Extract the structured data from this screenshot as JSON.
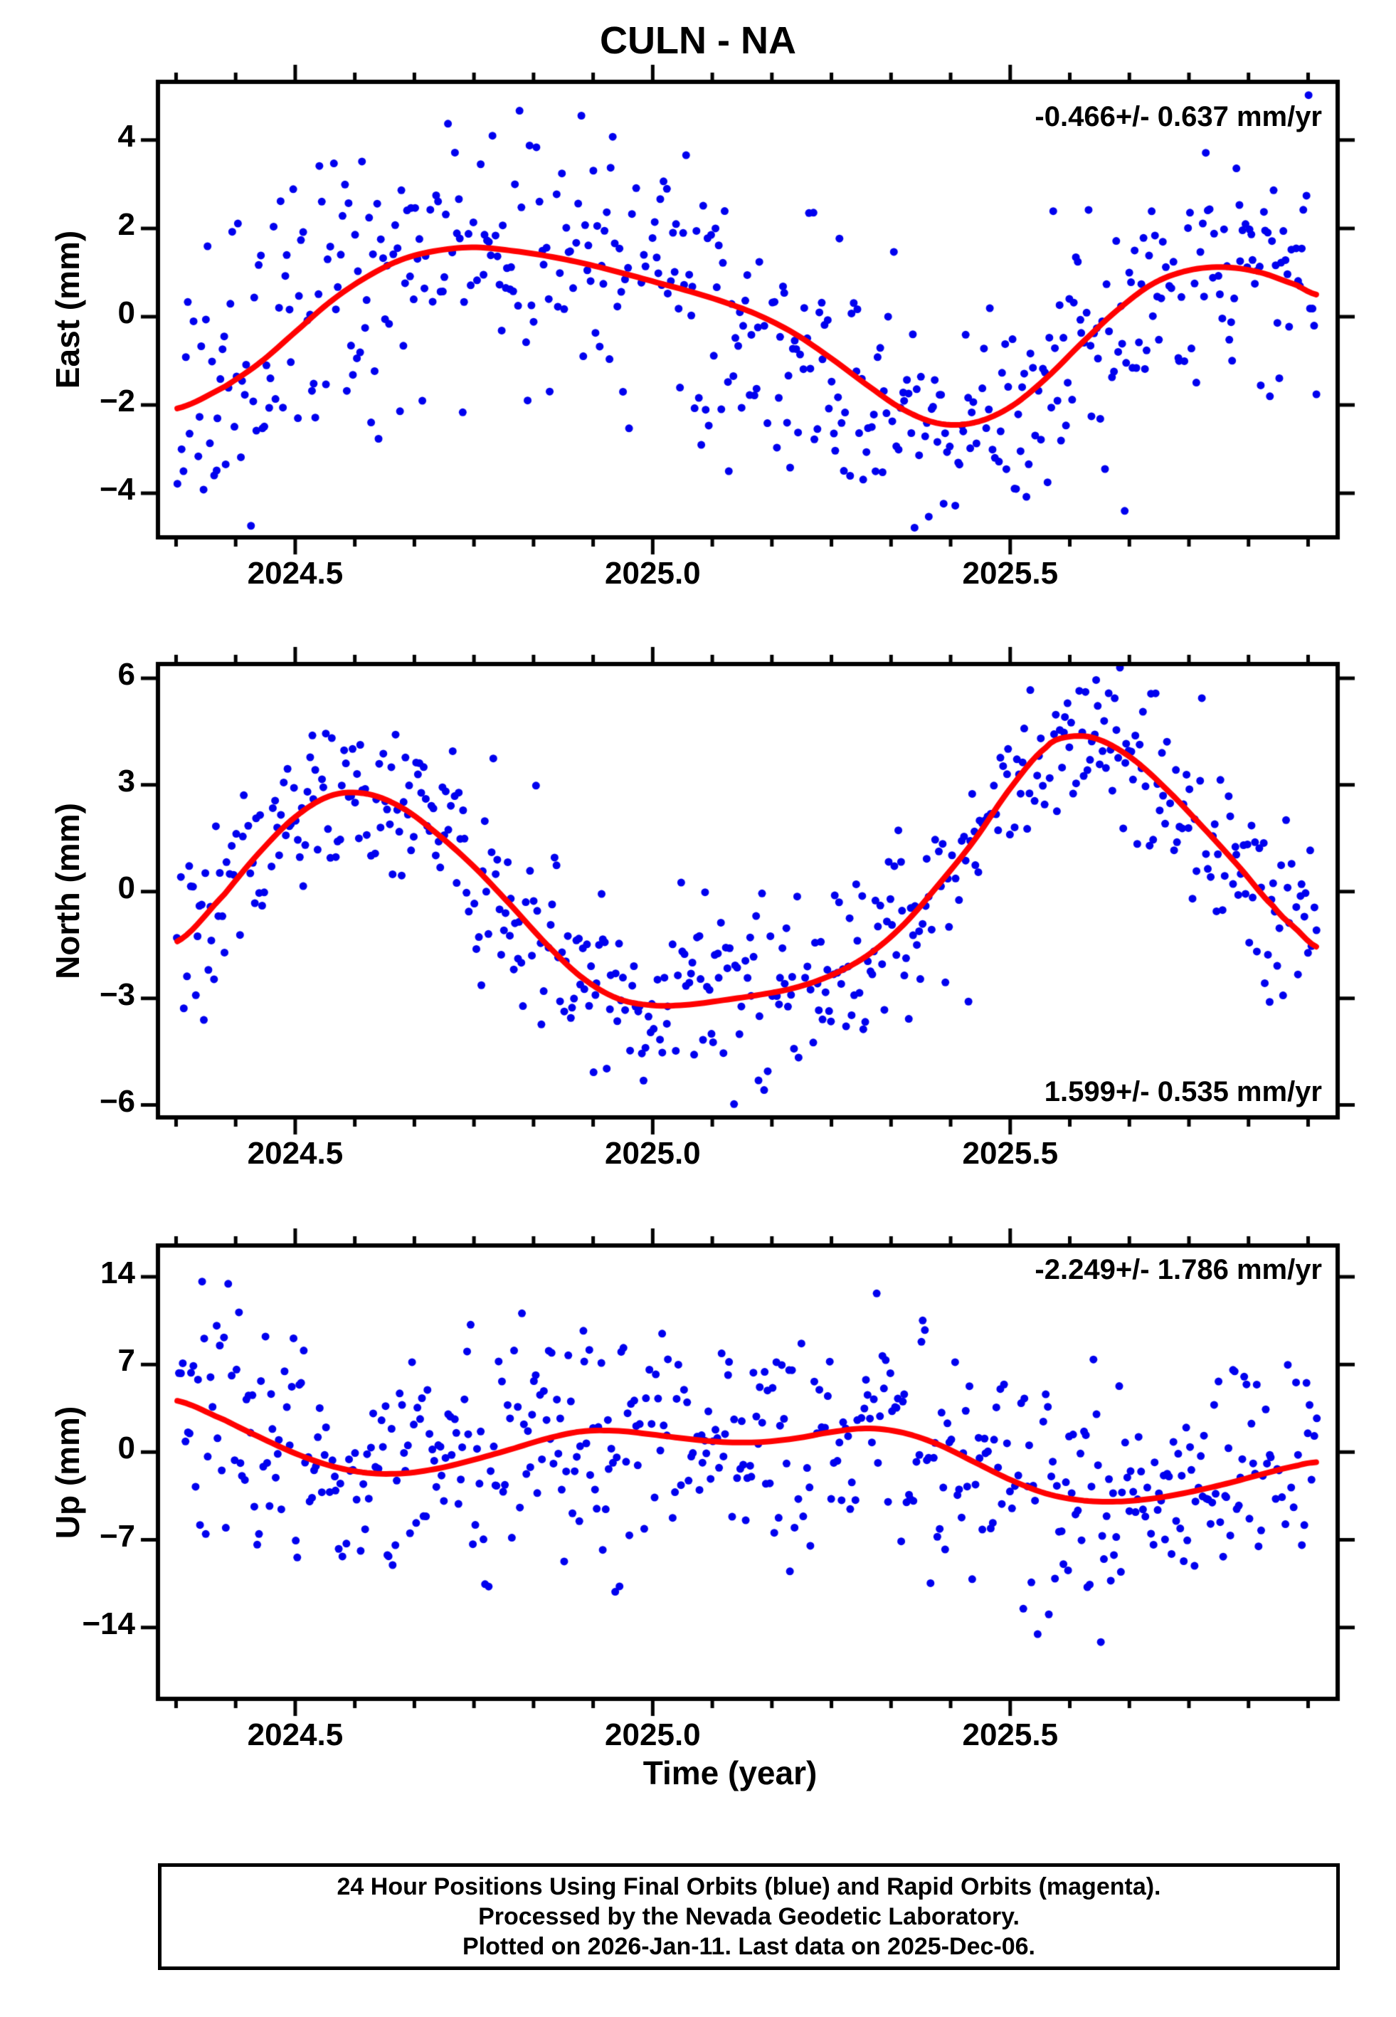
{
  "title": "CULN - NA",
  "xlabel": "Time (year)",
  "footer": {
    "line1": "24 Hour Positions Using Final Orbits (blue) and Rapid Orbits (magenta).",
    "line2": "Processed by the Nevada Geodetic Laboratory.",
    "line3": "Plotted on 2026-Jan-11. Last data on 2025-Dec-06."
  },
  "colors": {
    "scatter_blue": "#0000ee",
    "trend_red": "#ff0000",
    "frame_black": "#000000",
    "background": "#ffffff"
  },
  "chart_data": {
    "type": "scatter",
    "x_axis": {
      "label": "Time (year)",
      "lim": [
        2024.308,
        2025.958
      ],
      "major_ticks": [
        2024.5,
        2025.0,
        2025.5
      ],
      "major_tick_labels": [
        "2024.5",
        "2025.0",
        "2025.5"
      ],
      "minor_tick_interval_years": 0.08333
    },
    "panels": [
      {
        "id": "east",
        "ylabel": "East (mm)",
        "ylim": [
          -5.0,
          5.32
        ],
        "yticks": [
          -4,
          -2,
          0,
          2,
          4
        ],
        "rate_mm_per_yr": -0.466,
        "rate_sigma": 0.637,
        "annotation": "-0.466+/- 0.637 mm/yr",
        "annotation_pos": "top-right",
        "trend": [
          [
            2024.335,
            -2.08
          ],
          [
            2024.4,
            -1.6
          ],
          [
            2024.45,
            -1.05
          ],
          [
            2024.5,
            -0.35
          ],
          [
            2024.55,
            0.35
          ],
          [
            2024.6,
            0.9
          ],
          [
            2024.65,
            1.3
          ],
          [
            2024.7,
            1.5
          ],
          [
            2024.75,
            1.57
          ],
          [
            2024.8,
            1.5
          ],
          [
            2024.85,
            1.38
          ],
          [
            2024.9,
            1.22
          ],
          [
            2024.95,
            1.02
          ],
          [
            2025.0,
            0.8
          ],
          [
            2025.05,
            0.58
          ],
          [
            2025.1,
            0.33
          ],
          [
            2025.15,
            0.02
          ],
          [
            2025.2,
            -0.4
          ],
          [
            2025.25,
            -0.95
          ],
          [
            2025.3,
            -1.55
          ],
          [
            2025.35,
            -2.1
          ],
          [
            2025.4,
            -2.42
          ],
          [
            2025.45,
            -2.4
          ],
          [
            2025.5,
            -2.05
          ],
          [
            2025.55,
            -1.4
          ],
          [
            2025.6,
            -0.6
          ],
          [
            2025.65,
            0.15
          ],
          [
            2025.7,
            0.75
          ],
          [
            2025.75,
            1.05
          ],
          [
            2025.8,
            1.12
          ],
          [
            2025.85,
            1.0
          ],
          [
            2025.9,
            0.72
          ],
          [
            2025.928,
            0.5
          ]
        ],
        "scatter": {
          "n": 560,
          "sigma": 1.5,
          "seed": 11,
          "t_start": 2024.335,
          "t_end": 2025.928,
          "p_drop": 0.07,
          "p_neg": 0.015,
          "neg": [
            1.2,
            2.5
          ],
          "p_pos": 0.015,
          "pos": [
            1.2,
            2.5
          ]
        }
      },
      {
        "id": "north",
        "ylabel": "North (mm)",
        "ylim": [
          -6.35,
          6.4
        ],
        "yticks": [
          -6,
          -3,
          0,
          3,
          6
        ],
        "rate_mm_per_yr": 1.599,
        "rate_sigma": 0.535,
        "annotation": "1.599+/- 0.535 mm/yr",
        "annotation_pos": "bottom-right",
        "trend": [
          [
            2024.335,
            -1.4
          ],
          [
            2024.4,
            -0.1
          ],
          [
            2024.45,
            1.1
          ],
          [
            2024.5,
            2.1
          ],
          [
            2024.55,
            2.7
          ],
          [
            2024.6,
            2.75
          ],
          [
            2024.65,
            2.35
          ],
          [
            2024.7,
            1.6
          ],
          [
            2024.75,
            0.7
          ],
          [
            2024.8,
            -0.35
          ],
          [
            2024.85,
            -1.45
          ],
          [
            2024.9,
            -2.4
          ],
          [
            2024.95,
            -3.0
          ],
          [
            2025.0,
            -3.2
          ],
          [
            2025.05,
            -3.18
          ],
          [
            2025.1,
            -3.05
          ],
          [
            2025.15,
            -2.9
          ],
          [
            2025.2,
            -2.7
          ],
          [
            2025.25,
            -2.35
          ],
          [
            2025.3,
            -1.8
          ],
          [
            2025.35,
            -0.95
          ],
          [
            2025.4,
            0.2
          ],
          [
            2025.45,
            1.45
          ],
          [
            2025.5,
            2.9
          ],
          [
            2025.55,
            4.05
          ],
          [
            2025.58,
            4.35
          ],
          [
            2025.62,
            4.3
          ],
          [
            2025.67,
            3.75
          ],
          [
            2025.72,
            2.85
          ],
          [
            2025.77,
            1.8
          ],
          [
            2025.82,
            0.7
          ],
          [
            2025.87,
            -0.45
          ],
          [
            2025.9,
            -1.05
          ],
          [
            2025.928,
            -1.55
          ]
        ],
        "scatter": {
          "n": 560,
          "sigma": 1.25,
          "seed": 22,
          "t_start": 2024.335,
          "t_end": 2025.928,
          "p_drop": 0.07,
          "p_neg": 0.012,
          "neg": [
            1.0,
            1.8
          ],
          "p_pos": 0.012,
          "pos": [
            1.0,
            1.8
          ]
        }
      },
      {
        "id": "up",
        "ylabel": "Up (mm)",
        "ylim": [
          -19.7,
          16.5
        ],
        "yticks": [
          -14,
          -7,
          0,
          7,
          14
        ],
        "rate_mm_per_yr": -2.249,
        "rate_sigma": 1.786,
        "annotation": "-2.249+/- 1.786 mm/yr",
        "annotation_pos": "top-right",
        "trend": [
          [
            2024.335,
            4.1
          ],
          [
            2024.4,
            2.6
          ],
          [
            2024.45,
            1.2
          ],
          [
            2024.5,
            -0.1
          ],
          [
            2024.55,
            -1.1
          ],
          [
            2024.6,
            -1.65
          ],
          [
            2024.65,
            -1.7
          ],
          [
            2024.7,
            -1.3
          ],
          [
            2024.75,
            -0.6
          ],
          [
            2024.8,
            0.2
          ],
          [
            2024.85,
            1.05
          ],
          [
            2024.9,
            1.65
          ],
          [
            2024.95,
            1.7
          ],
          [
            2025.0,
            1.4
          ],
          [
            2025.05,
            1.05
          ],
          [
            2025.1,
            0.8
          ],
          [
            2025.15,
            0.8
          ],
          [
            2025.2,
            1.1
          ],
          [
            2025.25,
            1.6
          ],
          [
            2025.3,
            1.9
          ],
          [
            2025.35,
            1.55
          ],
          [
            2025.4,
            0.6
          ],
          [
            2025.45,
            -0.8
          ],
          [
            2025.5,
            -2.2
          ],
          [
            2025.55,
            -3.3
          ],
          [
            2025.6,
            -3.85
          ],
          [
            2025.65,
            -3.95
          ],
          [
            2025.7,
            -3.7
          ],
          [
            2025.75,
            -3.2
          ],
          [
            2025.8,
            -2.55
          ],
          [
            2025.85,
            -1.8
          ],
          [
            2025.9,
            -1.1
          ],
          [
            2025.928,
            -0.8
          ]
        ],
        "scatter": {
          "n": 560,
          "sigma": 4.2,
          "seed": 33,
          "t_start": 2024.335,
          "t_end": 2025.928,
          "p_drop": 0.07,
          "p_neg": 0.06,
          "neg": [
            2.5,
            8.0
          ],
          "p_pos": 0.015,
          "pos": [
            2.0,
            5.0
          ]
        }
      }
    ]
  }
}
